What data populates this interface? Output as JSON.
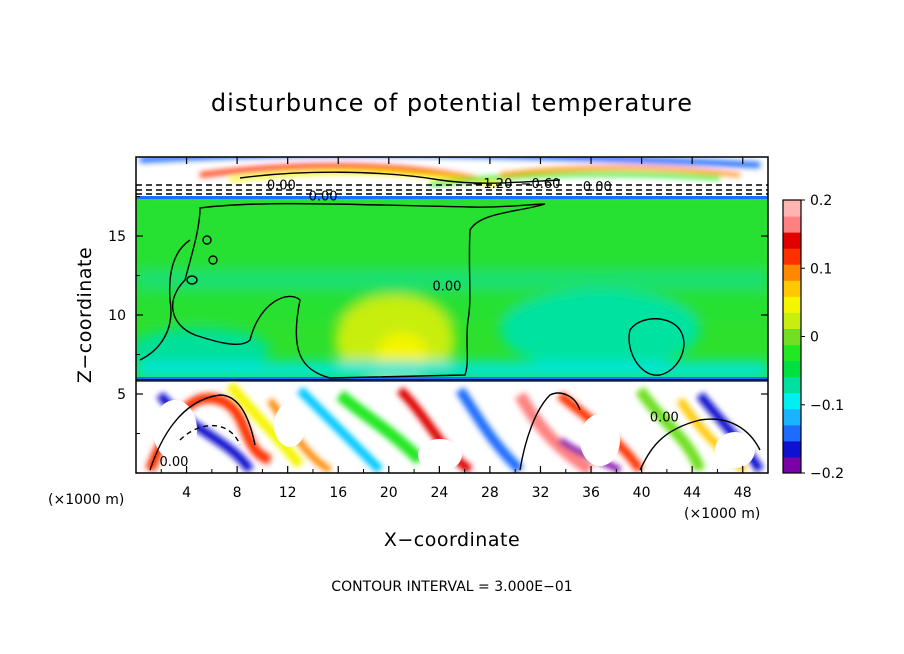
{
  "chart_data": {
    "type": "heatmap",
    "title": "disturbunce of potential temperature",
    "xlabel": "X−coordinate",
    "ylabel": "Z−coordinate",
    "x_unit": "(×1000 m)",
    "x_unit_right": "(×1000 m)",
    "xlim": [
      0,
      50
    ],
    "ylim": [
      0,
      20
    ],
    "x_ticks": [
      4,
      8,
      12,
      16,
      20,
      24,
      28,
      32,
      36,
      40,
      44,
      48
    ],
    "y_ticks": [
      5,
      10,
      15
    ],
    "colorbar": {
      "range": [
        -0.2,
        0.2
      ],
      "ticks": [
        0.2,
        0.1,
        0,
        -0.1,
        -0.2
      ],
      "tick_labels": [
        "0.2",
        "0.1",
        "0",
        "−0.1",
        "−0.2"
      ],
      "colors": [
        "#7a00a8",
        "#1010d0",
        "#1e6cff",
        "#19b4ff",
        "#00f0f0",
        "#00e0a0",
        "#00e040",
        "#22e822",
        "#70e020",
        "#c8ee10",
        "#f5f500",
        "#ffc800",
        "#ff8800",
        "#ff3000",
        "#e00000",
        "#ff8080",
        "#ffb4b4"
      ]
    },
    "contour_labels": [
      {
        "text": "0.00",
        "x": 11.5,
        "y": 18.2
      },
      {
        "text": "0.00",
        "x": 14.8,
        "y": 17.5
      },
      {
        "text": "−1.20",
        "x": 28.2,
        "y": 18.3
      },
      {
        "text": "−0.60",
        "x": 32.0,
        "y": 18.3
      },
      {
        "text": "0.00",
        "x": 36.5,
        "y": 18.1
      },
      {
        "text": "0.00",
        "x": 24.6,
        "y": 11.8
      },
      {
        "text": "0.00",
        "x": 41.8,
        "y": 3.5
      },
      {
        "text": "0.00",
        "x": 3.0,
        "y": 0.7
      }
    ],
    "annotation": "CONTOUR INTERVAL = 3.000E−01"
  }
}
